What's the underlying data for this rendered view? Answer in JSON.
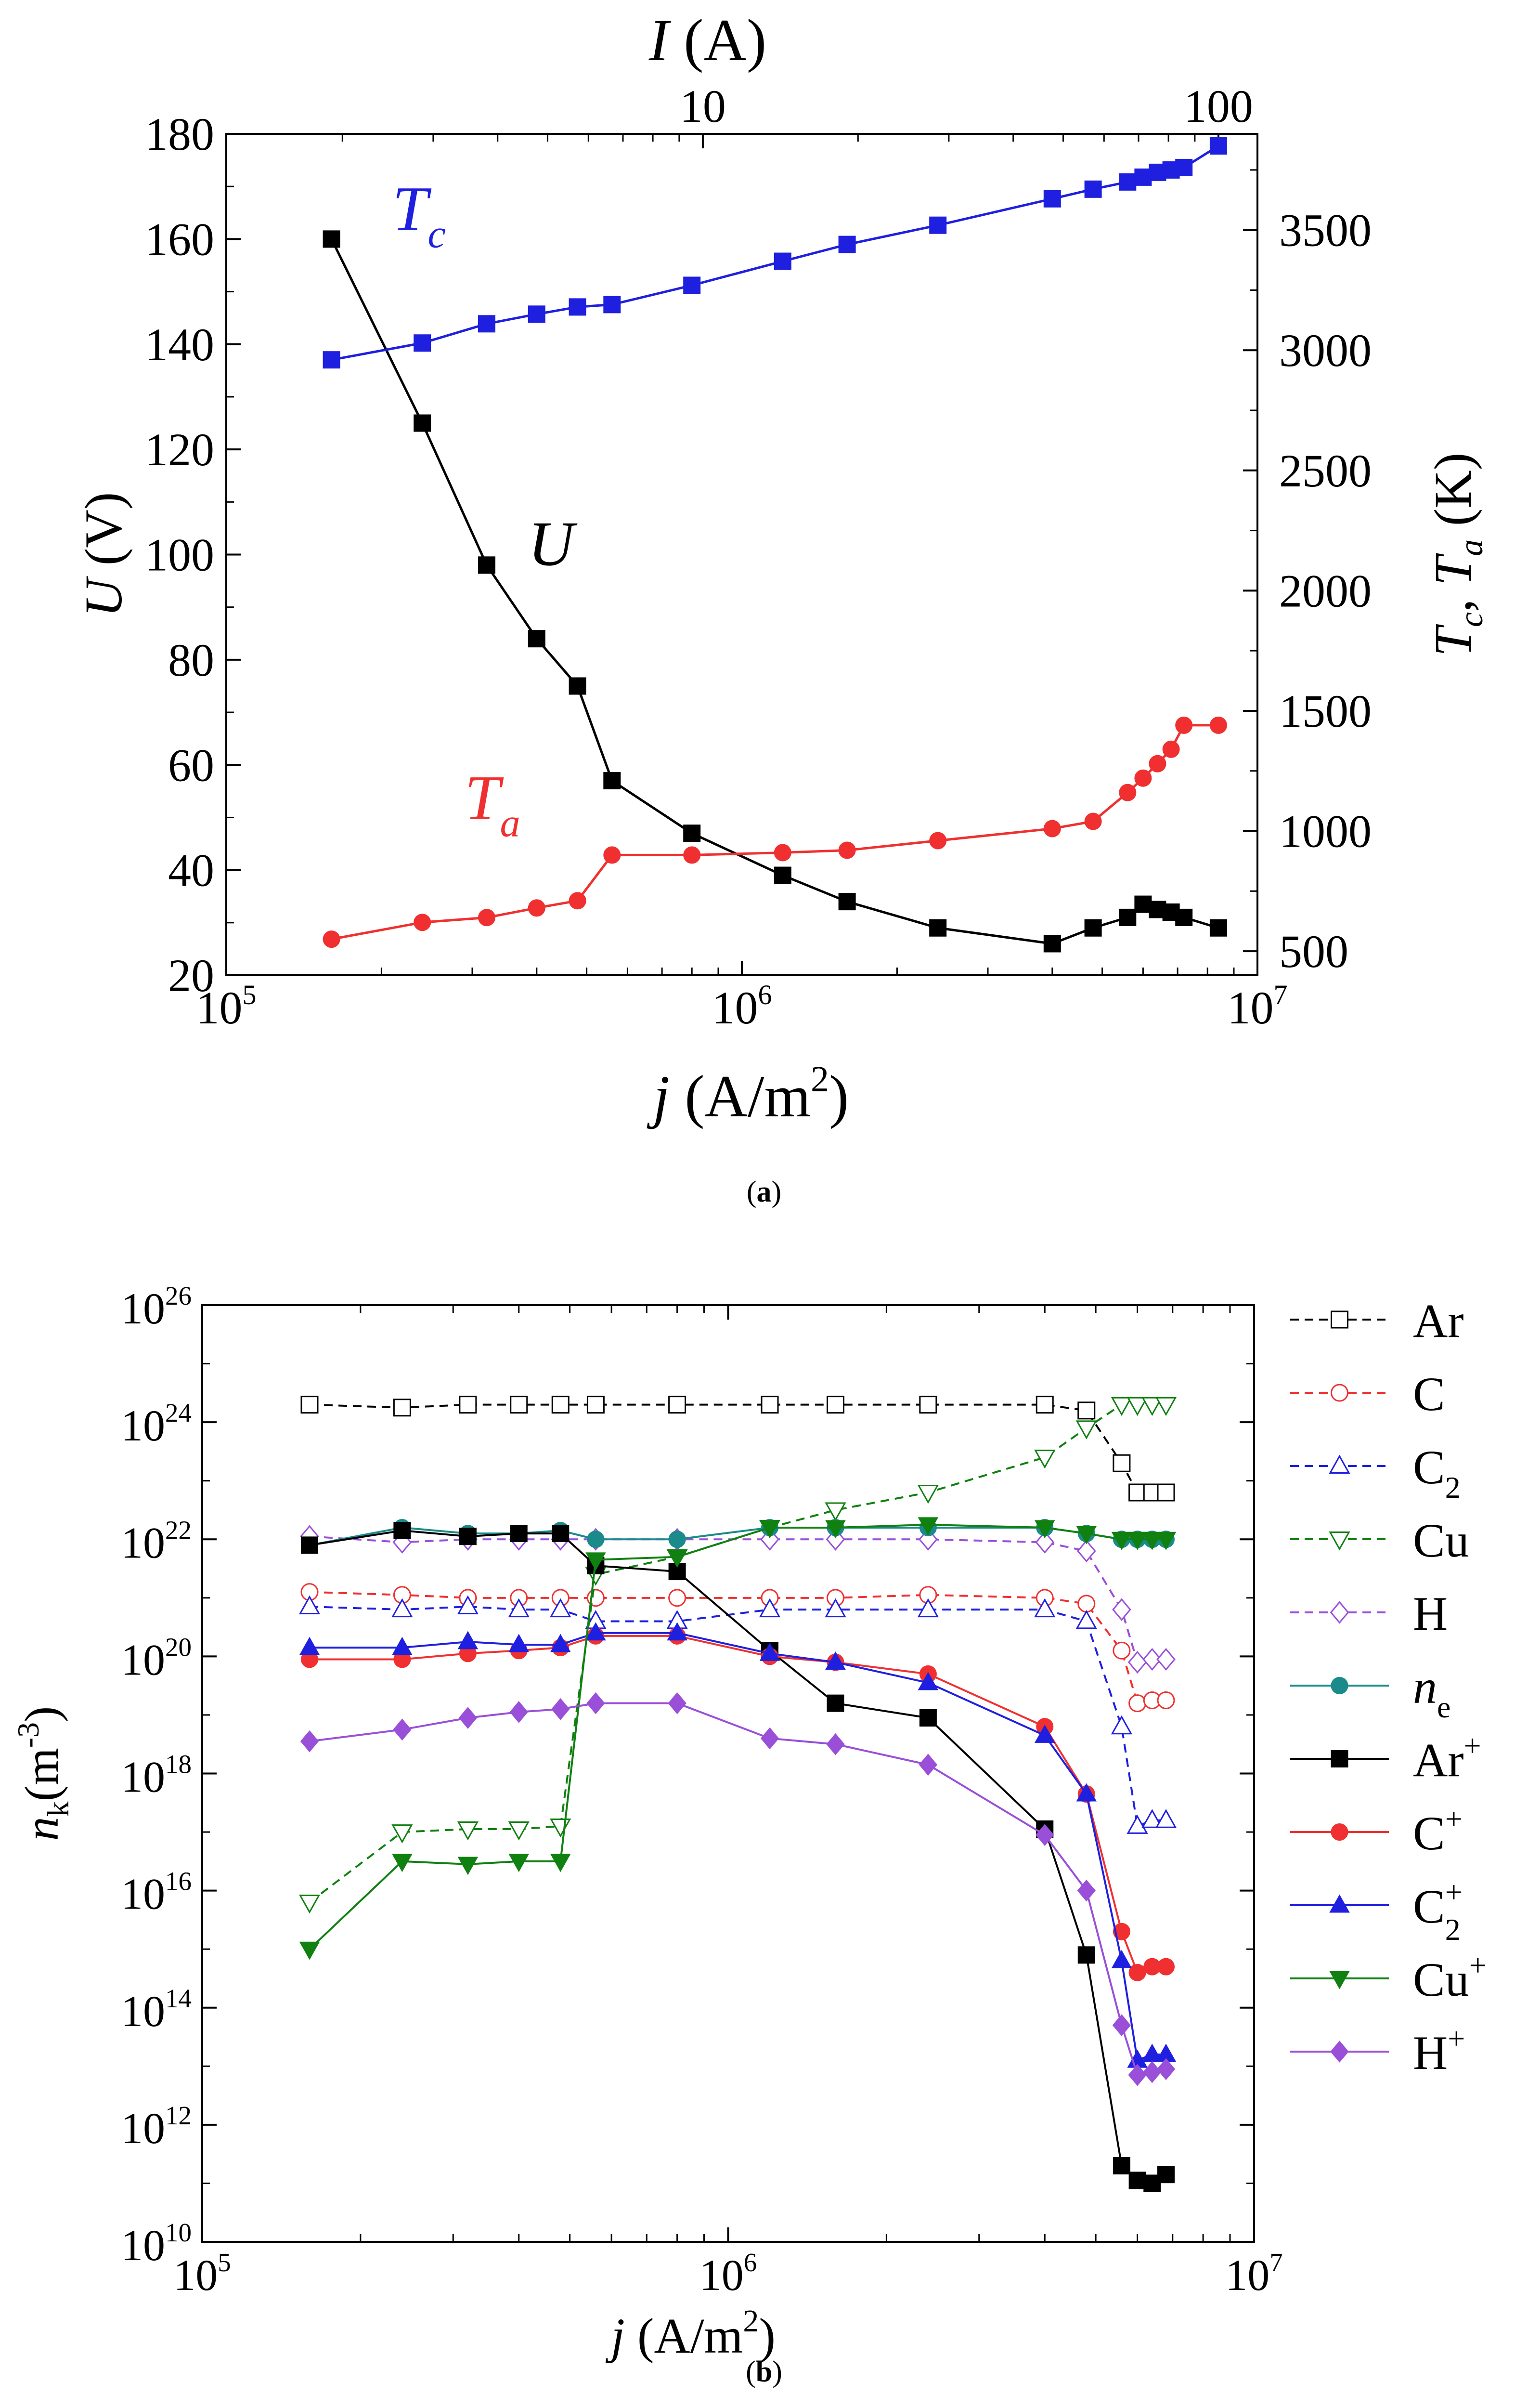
{
  "panel_a_caption": {
    "open": "(",
    "label": "a",
    "close": ")"
  },
  "panel_b_caption": {
    "open": "(",
    "label": "b",
    "close": ")"
  },
  "colors": {
    "black": "#000000",
    "blue": "#1f1fe0",
    "red": "#f03030",
    "green": "#108010",
    "purple": "#8a2be2",
    "violet": "#9a4fd8",
    "teal": "#1a8a8a",
    "gray": "#808080"
  },
  "chart_data": [
    {
      "type": "line",
      "panel": "a",
      "xscale": "log",
      "xlim": [
        100000,
        10000000
      ],
      "xlabel": {
        "italic": "j",
        "rest": " (A/m",
        "sup": "2",
        "close": ")"
      },
      "top_axis_label": {
        "italic": "I",
        "rest": " (A)"
      },
      "top_axis_ticks": [
        {
          "value": 10,
          "label": "10"
        },
        {
          "value": 100,
          "label": "100"
        }
      ],
      "top_axis_j_per_A": 84000,
      "x_tick_labels": [
        {
          "value": 100000,
          "base": "10",
          "exp": "5"
        },
        {
          "value": 1000000,
          "base": "10",
          "exp": "6"
        },
        {
          "value": 10000000,
          "base": "10",
          "exp": "7"
        }
      ],
      "ylabel": {
        "italic": "U",
        "rest": " (V)"
      },
      "ylim": [
        20,
        180
      ],
      "yticks": [
        20,
        40,
        60,
        80,
        100,
        120,
        140,
        160,
        180
      ],
      "y2label": {
        "t1": "T",
        "s1": "c",
        "comma": ", ",
        "t2": "T",
        "s2": "a",
        "rest": " (K)"
      },
      "y2lim": [
        400,
        3900
      ],
      "y2ticks": [
        500,
        1000,
        1500,
        2000,
        2500,
        3000,
        3500
      ],
      "series": [
        {
          "name": "U",
          "axis": "left",
          "color": "#000000",
          "marker": "square",
          "label": {
            "text": "U",
            "sub": "",
            "at_x": 385000,
            "at_y": 98
          },
          "x": [
            160000,
            240000,
            320000,
            400000,
            480000,
            560000,
            800000,
            1200000,
            1600000,
            2400000,
            4000000,
            4800000,
            5600000,
            6000000,
            6400000,
            6800000,
            7200000,
            8400000
          ],
          "y": [
            160,
            125,
            98,
            84,
            75,
            57,
            47,
            39,
            34,
            29,
            26,
            29,
            31,
            33.5,
            32.5,
            32,
            31,
            29
          ]
        },
        {
          "name": "Tc",
          "axis": "right",
          "color": "#1f1fe0",
          "marker": "square",
          "label": {
            "text": "T",
            "sub": "c",
            "at_x": 210000,
            "at_y2": 3500
          },
          "x": [
            160000,
            240000,
            320000,
            400000,
            480000,
            560000,
            800000,
            1200000,
            1600000,
            2400000,
            4000000,
            4800000,
            5600000,
            6000000,
            6400000,
            6800000,
            7200000,
            8400000
          ],
          "y": [
            2960,
            3030,
            3110,
            3150,
            3180,
            3190,
            3270,
            3370,
            3440,
            3520,
            3630,
            3670,
            3700,
            3720,
            3740,
            3750,
            3760,
            3850
          ]
        },
        {
          "name": "Ta",
          "axis": "right",
          "color": "#f03030",
          "marker": "circle",
          "label": {
            "text": "T",
            "sub": "a",
            "at_x": 290000,
            "at_y2": 1050
          },
          "x": [
            160000,
            240000,
            320000,
            400000,
            480000,
            560000,
            800000,
            1200000,
            1600000,
            2400000,
            4000000,
            4800000,
            5600000,
            6000000,
            6400000,
            6800000,
            7200000,
            8400000
          ],
          "y": [
            550,
            620,
            640,
            680,
            710,
            900,
            900,
            910,
            920,
            960,
            1010,
            1040,
            1160,
            1220,
            1280,
            1340,
            1440,
            1440
          ]
        }
      ]
    },
    {
      "type": "line",
      "panel": "b",
      "xscale": "log",
      "yscale": "log",
      "xlim": [
        100000,
        10000000
      ],
      "ylim_exp": [
        10,
        26
      ],
      "xlabel": {
        "italic": "j",
        "rest": " (A/m",
        "sup": "2",
        "close": ")"
      },
      "x_tick_labels": [
        {
          "value": 100000,
          "base": "10",
          "exp": "5"
        },
        {
          "value": 1000000,
          "base": "10",
          "exp": "6"
        },
        {
          "value": 10000000,
          "base": "10",
          "exp": "7"
        }
      ],
      "ylabel": {
        "italic": "n",
        "sub": "k",
        "rest": "(m",
        "sup": "-3",
        "close": ")"
      },
      "y_tick_labels": [
        {
          "exp_value": 10,
          "base": "10",
          "exp": "10"
        },
        {
          "exp_value": 12,
          "base": "10",
          "exp": "12"
        },
        {
          "exp_value": 14,
          "base": "10",
          "exp": "14"
        },
        {
          "exp_value": 16,
          "base": "10",
          "exp": "16"
        },
        {
          "exp_value": 18,
          "base": "10",
          "exp": "18"
        },
        {
          "exp_value": 20,
          "base": "10",
          "exp": "20"
        },
        {
          "exp_value": 22,
          "base": "10",
          "exp": "22"
        },
        {
          "exp_value": 24,
          "base": "10",
          "exp": "24"
        },
        {
          "exp_value": 26,
          "base": "10",
          "exp": "26"
        }
      ],
      "legend_position": "right",
      "x": [
        160000,
        240000,
        320000,
        400000,
        480000,
        560000,
        800000,
        1200000,
        1600000,
        2400000,
        4000000,
        4800000,
        5600000,
        6000000,
        6400000,
        6800000
      ],
      "series": [
        {
          "name": "Ar",
          "label": "Ar",
          "sub": "",
          "sup": "",
          "italic": false,
          "color": "#000000",
          "marker": "square",
          "filled": false,
          "dash": true,
          "log10_values": [
            24.3,
            24.25,
            24.3,
            24.3,
            24.3,
            24.3,
            24.3,
            24.3,
            24.3,
            24.3,
            24.3,
            24.2,
            23.3,
            22.8,
            22.8,
            22.8
          ]
        },
        {
          "name": "C",
          "label": "C",
          "sub": "",
          "sup": "",
          "italic": false,
          "color": "#f03030",
          "marker": "circle",
          "filled": false,
          "dash": true,
          "log10_values": [
            21.1,
            21.05,
            21.0,
            21.0,
            21.0,
            21.0,
            21.0,
            21.0,
            21.0,
            21.05,
            21.0,
            20.9,
            20.1,
            19.2,
            19.25,
            19.25
          ]
        },
        {
          "name": "C2",
          "label": "C",
          "sub": "2",
          "sup": "",
          "italic": false,
          "color": "#1f1fe0",
          "marker": "triangle-up",
          "filled": false,
          "dash": true,
          "log10_values": [
            20.85,
            20.8,
            20.85,
            20.8,
            20.8,
            20.6,
            20.6,
            20.8,
            20.8,
            20.8,
            20.8,
            20.6,
            18.8,
            17.1,
            17.2,
            17.2
          ]
        },
        {
          "name": "Cu",
          "label": "Cu",
          "sub": "",
          "sup": "",
          "italic": false,
          "color": "#108010",
          "marker": "triangle-down",
          "filled": false,
          "dash": true,
          "log10_values": [
            15.8,
            17.0,
            17.05,
            17.05,
            17.1,
            21.4,
            21.7,
            22.2,
            22.5,
            22.8,
            23.4,
            23.9,
            24.3,
            24.3,
            24.3,
            24.3
          ]
        },
        {
          "name": "H",
          "label": "H",
          "sub": "",
          "sup": "",
          "italic": false,
          "color": "#9a4fd8",
          "marker": "diamond",
          "filled": false,
          "dash": true,
          "log10_values": [
            22.05,
            21.95,
            22.0,
            22.0,
            22.0,
            22.0,
            22.0,
            22.0,
            22.0,
            22.0,
            21.95,
            21.8,
            20.8,
            19.9,
            19.95,
            19.95
          ]
        },
        {
          "name": "ne",
          "label": "n",
          "sub": "e",
          "sup": "",
          "italic": true,
          "color": "#1a8a8a",
          "marker": "circle",
          "filled": true,
          "dash": false,
          "log10_values": [
            21.9,
            22.2,
            22.1,
            22.1,
            22.15,
            22.0,
            22.0,
            22.2,
            22.2,
            22.2,
            22.2,
            22.1,
            22.0,
            22.0,
            22.0,
            22.0
          ]
        },
        {
          "name": "Ar+",
          "label": "Ar",
          "sub": "",
          "sup": "+",
          "italic": false,
          "color": "#000000",
          "marker": "square",
          "filled": true,
          "dash": false,
          "log10_values": [
            21.9,
            22.15,
            22.05,
            22.1,
            22.1,
            21.55,
            21.45,
            20.1,
            19.2,
            18.95,
            17.05,
            14.9,
            11.3,
            11.05,
            11.0,
            11.15
          ]
        },
        {
          "name": "C+",
          "label": "C",
          "sub": "",
          "sup": "+",
          "italic": false,
          "color": "#f03030",
          "marker": "circle",
          "filled": true,
          "dash": false,
          "log10_values": [
            19.95,
            19.95,
            20.05,
            20.1,
            20.15,
            20.35,
            20.35,
            20.0,
            19.9,
            19.7,
            18.8,
            17.65,
            15.3,
            14.6,
            14.7,
            14.7
          ]
        },
        {
          "name": "C2+",
          "label": "C",
          "sub": "2",
          "sup": "+",
          "italic": false,
          "color": "#1f1fe0",
          "marker": "triangle-up",
          "filled": true,
          "dash": false,
          "log10_values": [
            20.15,
            20.15,
            20.25,
            20.2,
            20.2,
            20.4,
            20.4,
            20.05,
            19.9,
            19.55,
            18.65,
            17.65,
            14.8,
            13.1,
            13.2,
            13.2
          ]
        },
        {
          "name": "Cu+",
          "label": "Cu",
          "sub": "",
          "sup": "+",
          "italic": false,
          "color": "#108010",
          "marker": "triangle-down",
          "filled": true,
          "dash": false,
          "log10_values": [
            15.0,
            16.5,
            16.45,
            16.5,
            16.5,
            21.65,
            21.7,
            22.2,
            22.2,
            22.25,
            22.2,
            22.1,
            22.0,
            22.0,
            22.0,
            22.0
          ]
        },
        {
          "name": "H+",
          "label": "H",
          "sub": "",
          "sup": "+",
          "italic": false,
          "color": "#9a4fd8",
          "marker": "diamond",
          "filled": true,
          "dash": false,
          "log10_values": [
            18.55,
            18.75,
            18.95,
            19.05,
            19.1,
            19.2,
            19.2,
            18.6,
            18.5,
            18.15,
            16.95,
            16.0,
            13.7,
            12.85,
            12.9,
            12.95
          ]
        }
      ]
    }
  ]
}
